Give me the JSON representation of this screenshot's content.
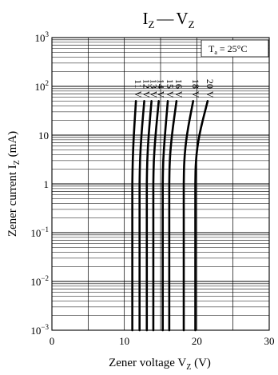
{
  "chart_data": {
    "type": "line",
    "title": {
      "base1": "I",
      "sub1": "Z",
      "dash": "—",
      "base2": "V",
      "sub2": "Z"
    },
    "annotation": {
      "base": "T",
      "sub": "a",
      "rest": " = 25°C"
    },
    "xlabel": {
      "base": "Zener voltage  V",
      "sub": "Z",
      "unit": "  (V)"
    },
    "ylabel": {
      "base": "Zener current  I",
      "sub": "Z",
      "unit": "  (mA)"
    },
    "xlim": [
      0,
      30
    ],
    "ylim": [
      0.001,
      1000
    ],
    "yscale": "log",
    "grid": true,
    "x_ticks": [
      "0",
      "10",
      "20",
      "30"
    ],
    "y_ticks": [
      {
        "value": 1000,
        "base": "10",
        "exp": "3"
      },
      {
        "value": 100,
        "base": "10",
        "exp": "2"
      },
      {
        "value": 10,
        "base": "10",
        "exp": ""
      },
      {
        "value": 1,
        "base": "1",
        "exp": ""
      },
      {
        "value": 0.1,
        "base": "10",
        "exp": "−1"
      },
      {
        "value": 0.01,
        "base": "10",
        "exp": "−2"
      },
      {
        "value": 0.001,
        "base": "10",
        "exp": "−3"
      }
    ],
    "series": [
      {
        "name": "11 V",
        "points": [
          [
            11.1,
            0.001
          ],
          [
            11.1,
            1
          ],
          [
            11.15,
            3
          ],
          [
            11.3,
            10
          ],
          [
            11.6,
            50
          ]
        ]
      },
      {
        "name": "12 V",
        "points": [
          [
            12.1,
            0.001
          ],
          [
            12.1,
            1
          ],
          [
            12.15,
            3
          ],
          [
            12.35,
            10
          ],
          [
            12.75,
            50
          ]
        ]
      },
      {
        "name": "13 V",
        "points": [
          [
            13.1,
            0.001
          ],
          [
            13.1,
            1
          ],
          [
            13.15,
            3
          ],
          [
            13.35,
            10
          ],
          [
            13.75,
            50
          ]
        ]
      },
      {
        "name": "14 V",
        "points": [
          [
            14.0,
            0.001
          ],
          [
            14.0,
            1
          ],
          [
            14.05,
            3
          ],
          [
            14.3,
            10
          ],
          [
            14.75,
            50
          ]
        ]
      },
      {
        "name": "15 V",
        "points": [
          [
            15.3,
            0.001
          ],
          [
            15.3,
            1
          ],
          [
            15.35,
            3
          ],
          [
            15.6,
            10
          ],
          [
            16.0,
            50
          ]
        ]
      },
      {
        "name": "16 V",
        "points": [
          [
            16.2,
            0.001
          ],
          [
            16.2,
            1
          ],
          [
            16.25,
            3
          ],
          [
            16.55,
            10
          ],
          [
            17.2,
            50
          ]
        ]
      },
      {
        "name": "18 V",
        "points": [
          [
            18.2,
            0.001
          ],
          [
            18.2,
            1
          ],
          [
            18.25,
            3
          ],
          [
            18.6,
            10
          ],
          [
            19.5,
            50
          ]
        ]
      },
      {
        "name": "20 V",
        "points": [
          [
            19.8,
            0.001
          ],
          [
            19.8,
            1
          ],
          [
            19.85,
            3
          ],
          [
            20.3,
            10
          ],
          [
            21.5,
            50
          ]
        ]
      }
    ]
  }
}
